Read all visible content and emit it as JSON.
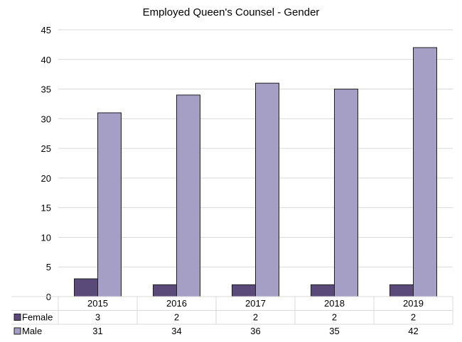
{
  "chart_data": {
    "type": "bar",
    "title": "Employed Queen's Counsel - Gender",
    "categories": [
      "2015",
      "2016",
      "2017",
      "2018",
      "2019"
    ],
    "series": [
      {
        "name": "Female",
        "values": [
          3,
          2,
          2,
          2,
          2
        ],
        "color": "#5a4a7a"
      },
      {
        "name": "Male",
        "values": [
          31,
          34,
          36,
          35,
          42
        ],
        "color": "#a59fc6"
      }
    ],
    "ylim": [
      0,
      45
    ],
    "yticks": [
      0,
      5,
      10,
      15,
      20,
      25,
      30,
      35,
      40,
      45
    ],
    "grid": true,
    "legend": "data-table",
    "gridline_color": "#d9d9d9",
    "bar_edge_color": "#1f1f1f"
  }
}
